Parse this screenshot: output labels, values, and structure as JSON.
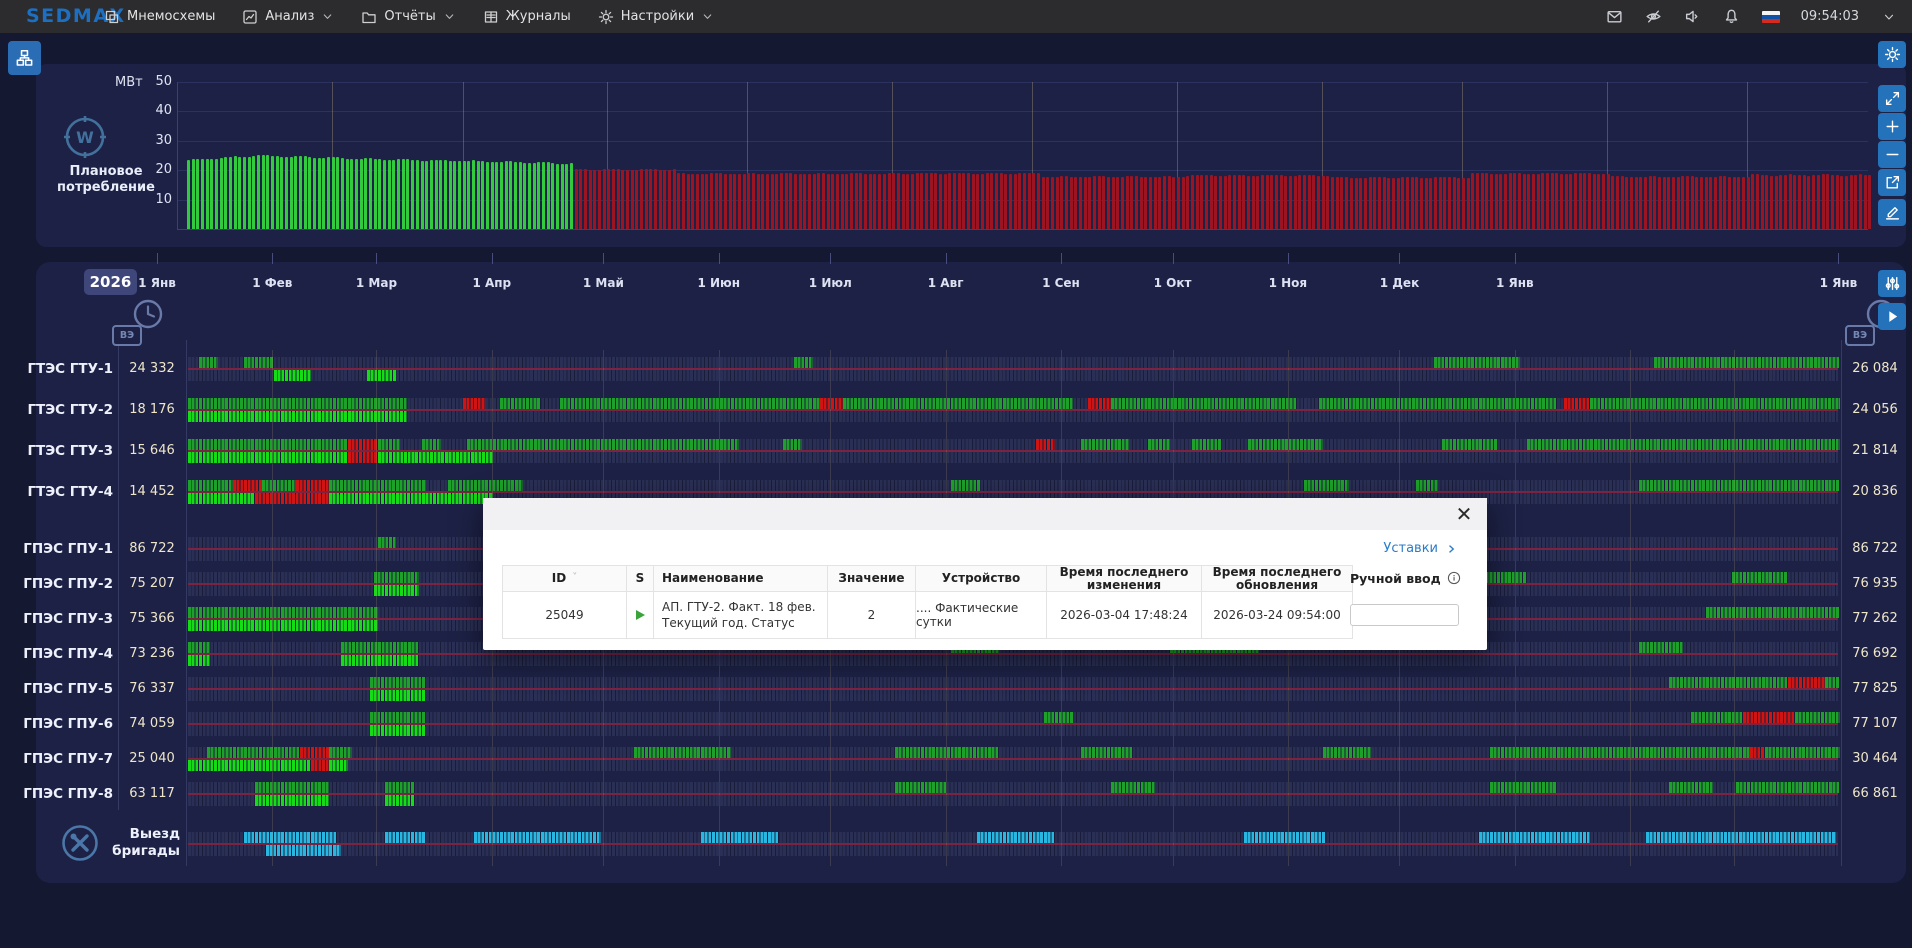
{
  "topbar": {
    "logo": "SEDMAX",
    "menu": [
      {
        "id": "mnemo",
        "label": "Мнемосхемы",
        "icon": "mnemo-icon",
        "chevron": false
      },
      {
        "id": "analysis",
        "label": "Анализ",
        "icon": "analysis-icon",
        "chevron": true
      },
      {
        "id": "reports",
        "label": "Отчёты",
        "icon": "reports-icon",
        "chevron": true
      },
      {
        "id": "journals",
        "label": "Журналы",
        "icon": "journals-icon",
        "chevron": false
      },
      {
        "id": "settings",
        "label": "Настройки",
        "icon": "settings-icon",
        "chevron": true
      }
    ],
    "status_icons": [
      "mail-icon",
      "eye-off-icon",
      "sound-icon",
      "bell-icon"
    ],
    "flag_colors": [
      "#f4f4f4",
      "#0f52a8",
      "#d52b1e"
    ],
    "clock": "09:54:03"
  },
  "side_toolbar": [
    {
      "id": "settings",
      "icon": "gear",
      "y": 41
    },
    {
      "id": "expand",
      "icon": "expand",
      "y": 85
    },
    {
      "id": "zoom-in",
      "icon": "plus",
      "y": 113
    },
    {
      "id": "zoom-out",
      "icon": "minus",
      "y": 141
    },
    {
      "id": "export",
      "icon": "export",
      "y": 169
    },
    {
      "id": "edit",
      "icon": "pencil",
      "y": 199
    },
    {
      "id": "filters",
      "icon": "sliders",
      "y": 270
    },
    {
      "id": "play",
      "icon": "play",
      "y": 303
    }
  ],
  "consumption": {
    "title": "Плановое потребление",
    "unit": "МВт",
    "yticks": [
      50,
      40,
      30,
      20,
      10
    ],
    "ylim": [
      0,
      50
    ],
    "fact_color": "#31cb3d",
    "plan_color": "#9c1422",
    "fact_points": [
      [
        0,
        23.4
      ],
      [
        15,
        24.9
      ],
      [
        40,
        23.7
      ],
      [
        60,
        23.1
      ],
      [
        82,
        22.2
      ]
    ],
    "plan_steps": [
      [
        83,
        105,
        20.2
      ],
      [
        105,
        150,
        18.7
      ],
      [
        150,
        183,
        18.9
      ],
      [
        183,
        214,
        17.7
      ],
      [
        214,
        245,
        18.2
      ],
      [
        245,
        275,
        17.5
      ],
      [
        275,
        305,
        18.8
      ],
      [
        305,
        335,
        17.7
      ],
      [
        335,
        362,
        18.3
      ]
    ],
    "month_days": [
      31,
      59,
      90,
      120,
      151,
      181,
      212,
      243,
      273,
      304,
      334
    ]
  },
  "gantt": {
    "year": "2026",
    "hours_badge": "ВЭ",
    "months": [
      {
        "label": "1 Янв",
        "day": 0
      },
      {
        "label": "1 Фев",
        "day": 31
      },
      {
        "label": "1 Мар",
        "day": 59
      },
      {
        "label": "1 Апр",
        "day": 90
      },
      {
        "label": "1 Май",
        "day": 120
      },
      {
        "label": "1 Июн",
        "day": 151
      },
      {
        "label": "1 Июл",
        "day": 181
      },
      {
        "label": "1 Авг",
        "day": 212
      },
      {
        "label": "1 Сен",
        "day": 243
      },
      {
        "label": "1 Окт",
        "day": 273
      },
      {
        "label": "1 Ноя",
        "day": 304
      },
      {
        "label": "1 Дек",
        "day": 334
      },
      {
        "label": "1 Янв",
        "day": 365
      },
      {
        "label": "1 Янв",
        "day": 452
      }
    ],
    "gridline_days": [
      31,
      59,
      90,
      120,
      151,
      181,
      212,
      243,
      273,
      304,
      334,
      365,
      396,
      424
    ],
    "colors": {
      "g": "#1ea12b",
      "G": "#15dd15",
      "r": "#d01313",
      "c": "#27b7e0",
      "cell": "#2a2f55",
      "gap": "#191d3a",
      "divider": "#7c2342"
    },
    "rows": [
      {
        "label": "ГТЭС ГТУ-1",
        "left": "24 332",
        "right": "26 084",
        "plan": [
          [
            3,
            8,
            "g"
          ],
          [
            15,
            23,
            "g"
          ],
          [
            163,
            168,
            "g"
          ],
          [
            335,
            358,
            "g"
          ],
          [
            394,
            444,
            "g"
          ]
        ],
        "fact": [
          [
            23,
            33,
            "G"
          ],
          [
            48,
            56,
            "G"
          ]
        ]
      },
      {
        "label": "ГТЭС ГТУ-2",
        "left": "18 176",
        "right": "24 056",
        "plan": [
          [
            0,
            59,
            "g"
          ],
          [
            74,
            80,
            "r"
          ],
          [
            84,
            95,
            "g"
          ],
          [
            100,
            170,
            "g"
          ],
          [
            170,
            176,
            "r"
          ],
          [
            176,
            238,
            "g"
          ],
          [
            242,
            248,
            "r"
          ],
          [
            248,
            298,
            "g"
          ],
          [
            304,
            368,
            "g"
          ],
          [
            370,
            377,
            "r"
          ],
          [
            377,
            444,
            "g"
          ]
        ],
        "fact": [
          [
            0,
            59,
            "G"
          ]
        ]
      },
      {
        "label": "ГТЭС ГТУ-3",
        "left": "15 646",
        "right": "21 814",
        "plan": [
          [
            0,
            43,
            "g"
          ],
          [
            43,
            51,
            "r"
          ],
          [
            51,
            57,
            "g"
          ],
          [
            63,
            68,
            "g"
          ],
          [
            75,
            148,
            "g"
          ],
          [
            160,
            165,
            "g"
          ],
          [
            228,
            233,
            "r"
          ],
          [
            240,
            253,
            "g"
          ],
          [
            258,
            264,
            "g"
          ],
          [
            270,
            278,
            "g"
          ],
          [
            285,
            305,
            "g"
          ],
          [
            337,
            352,
            "g"
          ],
          [
            360,
            444,
            "g"
          ]
        ],
        "fact": [
          [
            0,
            43,
            "G"
          ],
          [
            43,
            51,
            "r"
          ],
          [
            51,
            82,
            "G"
          ]
        ]
      },
      {
        "label": "ГТЭС ГТУ-4",
        "left": "14 452",
        "right": "20 836",
        "plan": [
          [
            0,
            12,
            "g"
          ],
          [
            12,
            20,
            "r"
          ],
          [
            20,
            29,
            "g"
          ],
          [
            29,
            38,
            "r"
          ],
          [
            38,
            64,
            "g"
          ],
          [
            70,
            90,
            "g"
          ],
          [
            205,
            213,
            "g"
          ],
          [
            300,
            312,
            "g"
          ],
          [
            330,
            336,
            "g"
          ],
          [
            390,
            444,
            "g"
          ]
        ],
        "fact": [
          [
            0,
            18,
            "G"
          ],
          [
            18,
            38,
            "r"
          ],
          [
            38,
            82,
            "G"
          ]
        ]
      },
      {
        "label": "ГПЭС ГПУ-1",
        "left": "86 722",
        "right": "86 722",
        "plan": [
          [
            51,
            56,
            "g"
          ]
        ],
        "fact": []
      },
      {
        "label": "ГПЭС ГПУ-2",
        "left": "75 207",
        "right": "76 935",
        "plan": [
          [
            50,
            62,
            "g"
          ],
          [
            345,
            360,
            "g"
          ],
          [
            415,
            430,
            "g"
          ]
        ],
        "fact": [
          [
            50,
            62,
            "G"
          ]
        ]
      },
      {
        "label": "ГПЭС ГПУ-3",
        "left": "75 366",
        "right": "77 262",
        "plan": [
          [
            0,
            51,
            "g"
          ],
          [
            408,
            444,
            "g"
          ]
        ],
        "fact": [
          [
            0,
            51,
            "G"
          ]
        ]
      },
      {
        "label": "ГПЭС ГПУ-4",
        "left": "73 236",
        "right": "76 692",
        "plan": [
          [
            0,
            6,
            "g"
          ],
          [
            41,
            62,
            "g"
          ],
          [
            205,
            218,
            "g"
          ],
          [
            264,
            288,
            "g"
          ],
          [
            390,
            402,
            "g"
          ]
        ],
        "fact": [
          [
            0,
            6,
            "G"
          ],
          [
            41,
            62,
            "G"
          ]
        ]
      },
      {
        "label": "ГПЭС ГПУ-5",
        "left": "76 337",
        "right": "77 825",
        "plan": [
          [
            49,
            64,
            "g"
          ],
          [
            398,
            430,
            "g"
          ],
          [
            430,
            440,
            "r"
          ],
          [
            440,
            444,
            "g"
          ]
        ],
        "fact": [
          [
            49,
            64,
            "G"
          ]
        ]
      },
      {
        "label": "ГПЭС ГПУ-6",
        "left": "74 059",
        "right": "77 107",
        "plan": [
          [
            49,
            64,
            "g"
          ],
          [
            230,
            238,
            "g"
          ],
          [
            404,
            418,
            "g"
          ],
          [
            418,
            432,
            "r"
          ],
          [
            432,
            444,
            "g"
          ]
        ],
        "fact": [
          [
            49,
            64,
            "G"
          ]
        ]
      },
      {
        "label": "ГПЭС ГПУ-7",
        "left": "25 040",
        "right": "30 464",
        "plan": [
          [
            5,
            30,
            "g"
          ],
          [
            30,
            38,
            "r"
          ],
          [
            38,
            44,
            "g"
          ],
          [
            120,
            146,
            "g"
          ],
          [
            190,
            218,
            "g"
          ],
          [
            240,
            254,
            "g"
          ],
          [
            305,
            318,
            "g"
          ],
          [
            350,
            420,
            "g"
          ],
          [
            420,
            424,
            "r"
          ],
          [
            424,
            444,
            "g"
          ]
        ],
        "fact": [
          [
            0,
            33,
            "G"
          ],
          [
            33,
            38,
            "r"
          ],
          [
            38,
            43,
            "G"
          ]
        ]
      },
      {
        "label": "ГПЭС ГПУ-8",
        "left": "63 117",
        "right": "66 861",
        "plan": [
          [
            18,
            38,
            "g"
          ],
          [
            53,
            61,
            "g"
          ],
          [
            190,
            204,
            "g"
          ],
          [
            248,
            260,
            "g"
          ],
          [
            350,
            368,
            "g"
          ],
          [
            398,
            410,
            "g"
          ],
          [
            416,
            444,
            "g"
          ]
        ],
        "fact": [
          [
            18,
            38,
            "G"
          ],
          [
            53,
            61,
            "G"
          ]
        ]
      }
    ],
    "brigade": {
      "label": "Выезд бригады",
      "plan": [
        [
          15,
          40,
          "c"
        ],
        [
          53,
          64,
          "c"
        ],
        [
          77,
          111,
          "c"
        ],
        [
          138,
          159,
          "c"
        ],
        [
          212,
          233,
          "c"
        ],
        [
          284,
          306,
          "c"
        ],
        [
          347,
          377,
          "c"
        ],
        [
          392,
          443,
          "c"
        ]
      ],
      "fact": [
        [
          21,
          41,
          "c"
        ]
      ]
    }
  },
  "dialog": {
    "link_label": "Уставки",
    "columns": [
      "ID",
      "S",
      "Наименование",
      "Значение",
      "Устройство",
      "Время последнего изменения",
      "Время последнего обновления",
      "Ручной ввод"
    ],
    "row": {
      "id": "25049",
      "name_line1": "АП. ГТУ-2. Факт. 18 фев.",
      "name_line2": "Текущий год. Статус",
      "value": "2",
      "device": ".... Фактические сутки",
      "changed": "2026-03-04 17:48:24",
      "updated": "2026-03-24 09:54:00",
      "manual_input_value": ""
    }
  }
}
